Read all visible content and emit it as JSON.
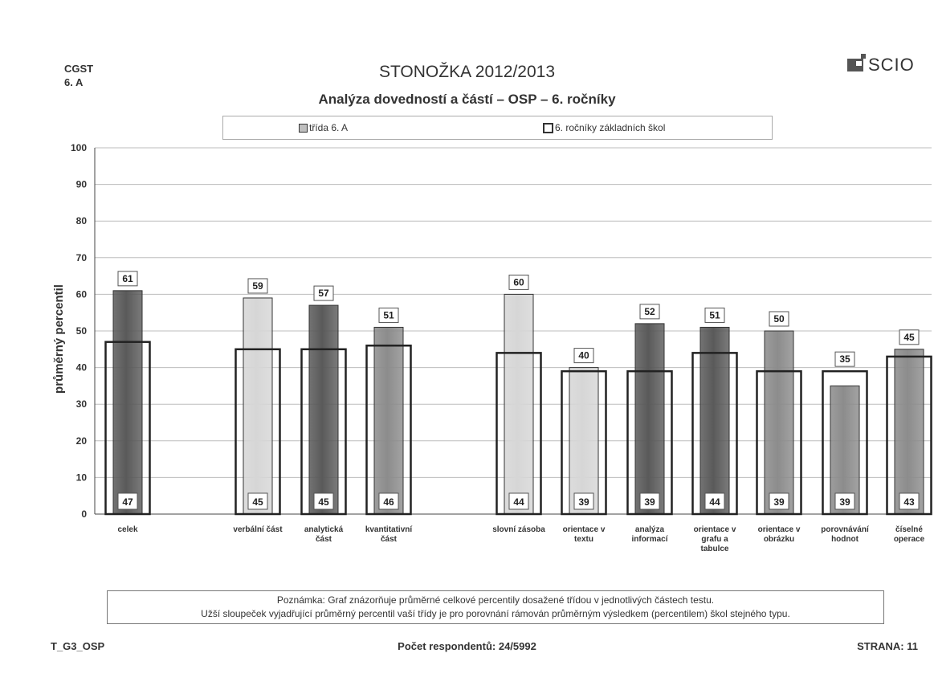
{
  "header": {
    "school_line1": "CGST",
    "school_line2": "6. A",
    "title": "STONOŽKA 2012/2013",
    "subtitle": "Analýza dovedností a částí – OSP – 6. ročníky",
    "logo_text": "SCIO"
  },
  "legend": {
    "class_label": "třída 6. A",
    "national_label": "6. ročníky základních škol"
  },
  "chart_data": {
    "type": "bar",
    "title": "Analýza dovedností a částí – OSP – 6. ročníky",
    "ylabel": "průměrný percentil",
    "ylim": [
      0,
      100
    ],
    "yticks": [
      0,
      10,
      20,
      30,
      40,
      50,
      60,
      70,
      80,
      90,
      100
    ],
    "grid": true,
    "legend_position": "top",
    "categories": [
      [
        "celek"
      ],
      [
        "verbální část"
      ],
      [
        "analytická",
        "část"
      ],
      [
        "kvantitativní",
        "část"
      ],
      [
        "slovní zásoba"
      ],
      [
        "orientace v",
        "textu"
      ],
      [
        "analýza",
        "informací"
      ],
      [
        "orientace v",
        "grafu a",
        "tabulce"
      ],
      [
        "orientace v",
        "obrázku"
      ],
      [
        "porovnávání",
        "hodnot"
      ],
      [
        "číselné",
        "operace"
      ]
    ],
    "series": [
      {
        "name": "třída 6. A",
        "values": [
          61,
          59,
          57,
          51,
          60,
          40,
          52,
          51,
          50,
          35,
          45
        ]
      },
      {
        "name": "6. ročníky základních škol",
        "values": [
          47,
          45,
          45,
          46,
          44,
          39,
          39,
          44,
          39,
          39,
          43
        ]
      }
    ],
    "bar_shades": [
      "dark",
      "light",
      "dark",
      "medium",
      "light",
      "light",
      "dark",
      "dark",
      "medium",
      "medium",
      "medium"
    ]
  },
  "note": {
    "line1": "Poznámka: Graf znázorňuje průměrné celkové percentily dosažené třídou v jednotlivých částech testu.",
    "line2": "Užší sloupeček vyjadřující průměrný percentil vaší třídy je pro porovnání rámován průměrným výsledkem  (percentilem)  škol stejného typu."
  },
  "footer": {
    "code": "T_G3_OSP",
    "respondents": "Počet respondentů: 24/5992",
    "page": "STRANA: 11"
  },
  "colors": {
    "dark": "#5a5a5a",
    "medium": "#8c8c8c",
    "light": "#d6d6d6",
    "frame": "#222222",
    "grid": "#bdbdbd"
  }
}
